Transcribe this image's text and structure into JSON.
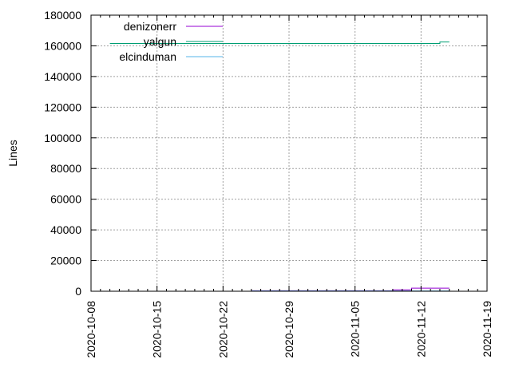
{
  "chart_data": {
    "type": "line",
    "title": "",
    "xlabel": "",
    "ylabel": "Lines",
    "xlim": [
      "2020-10-08",
      "2020-11-19"
    ],
    "ylim": [
      0,
      180000
    ],
    "x_ticks": [
      "2020-10-08",
      "2020-10-15",
      "2020-10-22",
      "2020-10-29",
      "2020-11-05",
      "2020-11-12",
      "2020-11-19"
    ],
    "y_ticks": [
      0,
      20000,
      40000,
      60000,
      80000,
      100000,
      120000,
      140000,
      160000,
      180000
    ],
    "grid": true,
    "legend_position": "top-left",
    "series": [
      {
        "name": "denizonerr",
        "color": "#9400d3",
        "points": [
          {
            "x": "2020-10-25",
            "y": 300
          },
          {
            "x": "2020-11-09",
            "y": 400
          },
          {
            "x": "2020-11-09",
            "y": 900
          },
          {
            "x": "2020-11-11",
            "y": 900
          },
          {
            "x": "2020-11-11",
            "y": 2000
          },
          {
            "x": "2020-11-15",
            "y": 2000
          }
        ]
      },
      {
        "name": "yalgun",
        "color": "#009e73",
        "points": [
          {
            "x": "2020-10-10",
            "y": 161500
          },
          {
            "x": "2020-11-14",
            "y": 161500
          },
          {
            "x": "2020-11-14",
            "y": 162500
          },
          {
            "x": "2020-11-15",
            "y": 162500
          }
        ]
      },
      {
        "name": "elcinduman",
        "color": "#56b4e9",
        "points": [
          {
            "x": "2020-10-25",
            "y": 200
          },
          {
            "x": "2020-11-15",
            "y": 200
          }
        ]
      }
    ]
  }
}
